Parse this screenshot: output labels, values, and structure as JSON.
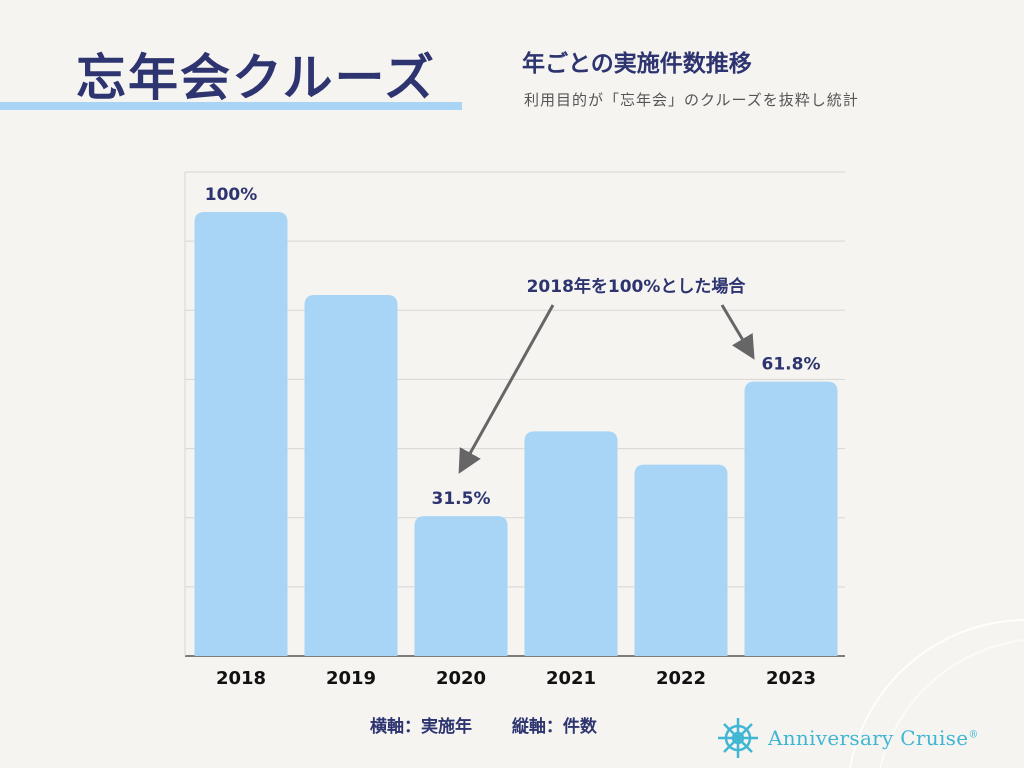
{
  "header": {
    "title": "忘年会クルーズ",
    "subtitle": "年ごとの実施件数推移",
    "note": "利用目的が「忘年会」のクルーズを抜粋し統計"
  },
  "chart_data": {
    "type": "bar",
    "categories": [
      "2018",
      "2019",
      "2020",
      "2021",
      "2022",
      "2023"
    ],
    "values": [
      100,
      81.3,
      31.5,
      50.6,
      43.1,
      61.8
    ],
    "data_labels": [
      "100%",
      "",
      "31.5%",
      "",
      "",
      "61.8%"
    ],
    "ylim": [
      0,
      109
    ],
    "grid": true,
    "bar_color": "#a8d4f5",
    "annotation": "2018年を100%とした場合",
    "xlabel_note": "横軸：実施年",
    "ylabel_note": "縦軸：件数"
  },
  "logo": {
    "text": "Anniversary Cruise",
    "mark": "®",
    "icon": "ship-wheel-icon",
    "color": "#3fb6d3"
  }
}
